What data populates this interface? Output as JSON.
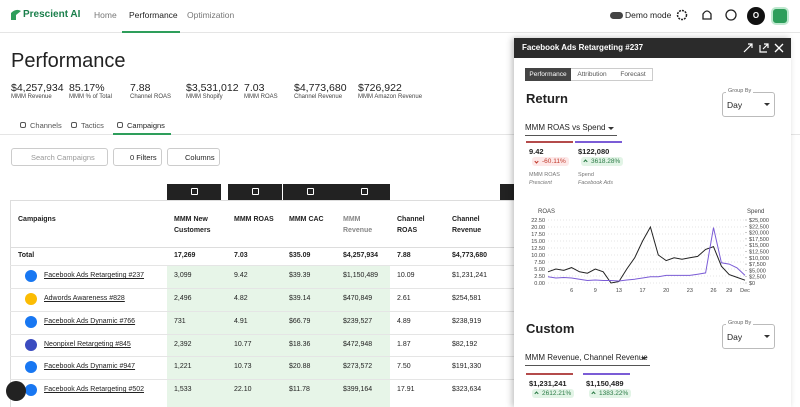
{
  "nav": {
    "logo": "Prescient AI",
    "tabs": [
      "Home",
      "Performance",
      "Optimization"
    ],
    "demo_mode": "Demo mode",
    "avatar": "O"
  },
  "header": {
    "title": "Performance",
    "metrics": [
      {
        "value": "$4,257,934",
        "label": "MMM Revenue"
      },
      {
        "value": "85.17%",
        "label": "MMM % of Total"
      },
      {
        "value": "7.88",
        "label": "Channel ROAS"
      },
      {
        "value": "$3,531,012",
        "label": "MMM Shopify"
      },
      {
        "value": "7.03",
        "label": "MMM ROAS"
      },
      {
        "value": "$4,773,680",
        "label": "Channel Revenue"
      },
      {
        "value": "$726,922",
        "label": "MMM Amazon Revenue"
      }
    ]
  },
  "tabs": [
    "Channels",
    "Tactics",
    "Campaigns"
  ],
  "toolbar": {
    "search": "Search Campaigns",
    "filters": "0 Filters",
    "columns": "Columns"
  },
  "table": {
    "columns": [
      "Campaigns",
      "MMM New Customers",
      "MMM ROAS",
      "MMM CAC",
      "MMM Revenue",
      "Channel ROAS",
      "Channel Revenue"
    ],
    "total": [
      "Total",
      "17,269",
      "7.03",
      "$35.09",
      "$4,257,934",
      "7.88",
      "$4,773,680"
    ],
    "rows": [
      [
        "Facebook Ads Retargeting #237",
        "3,099",
        "9.42",
        "$39.39",
        "$1,150,489",
        "10.09",
        "$1,231,241"
      ],
      [
        "Adwords Awareness #828",
        "2,496",
        "4.82",
        "$39.14",
        "$470,849",
        "2.61",
        "$254,581"
      ],
      [
        "Facebook Ads Dynamic #766",
        "731",
        "4.91",
        "$66.79",
        "$239,527",
        "4.89",
        "$238,919"
      ],
      [
        "Neonpixel Retargeting #845",
        "2,392",
        "10.77",
        "$18.36",
        "$472,948",
        "1.87",
        "$82,192"
      ],
      [
        "Facebook Ads Dynamic #947",
        "1,221",
        "10.73",
        "$20.88",
        "$273,572",
        "7.50",
        "$191,330"
      ],
      [
        "Facebook Ads Retargeting #502",
        "1,533",
        "22.10",
        "$11.78",
        "$399,164",
        "17.91",
        "$323,634"
      ]
    ]
  },
  "panel": {
    "title": "Facebook Ads Retargeting #237",
    "tabs": [
      "Performance",
      "Attribution",
      "Forecast"
    ],
    "return_heading": "Return",
    "group_by": "Group By",
    "group_value": "Day",
    "metric_select": "MMM ROAS vs Spend",
    "stats": [
      {
        "value": "9.42",
        "change": "-60.11%",
        "label": "MMM ROAS",
        "source": "Prescient"
      },
      {
        "value": "$122,080",
        "change": "3618.28%",
        "label": "Spend",
        "source": "Facebook Ads"
      }
    ],
    "custom_heading": "Custom",
    "custom_group_by": "Group By",
    "custom_group_value": "Day",
    "custom_select": "MMM Revenue, Channel Revenue",
    "custom_stats": [
      {
        "value": "$1,231,241",
        "change": "2612.21%"
      },
      {
        "value": "$1,150,489",
        "change": "1383.22%"
      }
    ]
  },
  "chart_data": {
    "type": "line",
    "y_label": "ROAS",
    "y2_label": "Spend",
    "categories": [
      null,
      null,
      null,
      "6",
      null,
      null,
      "9",
      null,
      null,
      "13",
      null,
      null,
      "17",
      null,
      null,
      "20",
      null,
      null,
      "23",
      null,
      null,
      "26",
      null,
      "29",
      null,
      "Dec"
    ],
    "series": [
      {
        "name": "MMM ROAS",
        "color": "#222222",
        "values": [
          4,
          5,
          4.5,
          5.5,
          4,
          3.5,
          5,
          4,
          0,
          0.5,
          5,
          9,
          15,
          20,
          10,
          8,
          9,
          8.5,
          9,
          9.5,
          12,
          13,
          6,
          3,
          2,
          1
        ]
      },
      {
        "name": "Spend",
        "color": "#7b5cd6",
        "axis": "y2",
        "values": [
          2500,
          2000,
          2200,
          2000,
          1500,
          1000,
          1200,
          1000,
          1000,
          800,
          1200,
          1500,
          2000,
          2500,
          2500,
          3000,
          3000,
          3000,
          3000,
          3500,
          4000,
          22000,
          8000,
          7500,
          6000,
          3000
        ]
      }
    ],
    "ylim": [
      0,
      22.5
    ],
    "yticks": [
      {
        "value": 0,
        "label": "0.00"
      },
      {
        "value": 2.5,
        "label": "2.50"
      },
      {
        "value": 5,
        "label": "5.00"
      },
      {
        "value": 7.5,
        "label": "7.50"
      },
      {
        "value": 10,
        "label": "10.00"
      },
      {
        "value": 12.5,
        "label": "12.50"
      },
      {
        "value": 15,
        "label": "15.00"
      },
      {
        "value": 17.5,
        "label": "17.50"
      },
      {
        "value": 20,
        "label": "20.00"
      },
      {
        "value": 22.5,
        "label": "22.50"
      }
    ],
    "y2lim": [
      0,
      25000
    ],
    "y2ticks": [
      {
        "value": 0,
        "label": "$0"
      },
      {
        "value": 2500,
        "label": "$2,500"
      },
      {
        "value": 5000,
        "label": "$5,000"
      },
      {
        "value": 7500,
        "label": "$7,500"
      },
      {
        "value": 10000,
        "label": "$10,000"
      },
      {
        "value": 12500,
        "label": "$12,500"
      },
      {
        "value": 15000,
        "label": "$15,000"
      },
      {
        "value": 17500,
        "label": "$17,500"
      },
      {
        "value": 20000,
        "label": "$20,000"
      },
      {
        "value": 22500,
        "label": "$22,500"
      },
      {
        "value": 25000,
        "label": "$25,000"
      }
    ],
    "grid": true
  }
}
